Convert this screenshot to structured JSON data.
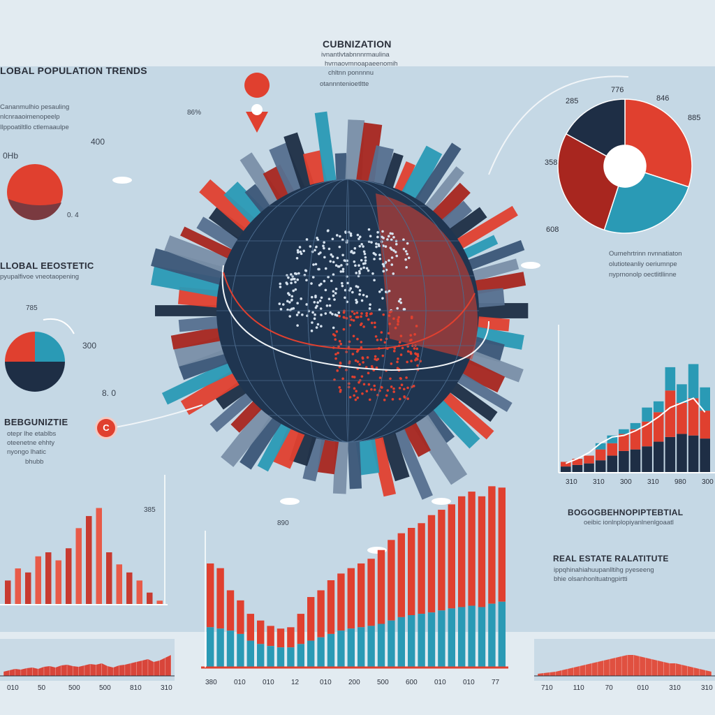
{
  "labels": {
    "top_title": "CUBNIZATION",
    "top_blurb": [
      "ivnantlvtabnnnrmaulina",
      "hvrnaovmnoapaeenomih",
      "chltnn ponnnnu",
      "otannntenioetltte"
    ],
    "left_title": "LOBAL POPULATION TRENDS",
    "left_blurb": [
      "Cananmulhio pesauling",
      "nlcnraaoimenopeelp",
      "Ilppoatiltllo ctlemaaulpe"
    ],
    "left_tag": "0Hb",
    "ecostat_title": "LLOBAL EEOSTETIC",
    "ecostat_blurb": "pyupalfivoe vneotaopening",
    "begun_title": "BEBGUNIZTIE",
    "begun_blurb": [
      "otepr lhe etablbs",
      "oteenetne ehhty",
      "nyongo lhatic",
      "bhubb"
    ],
    "right_blurb": [
      "Oumehrtrinn nvnnatiaton",
      "olutioteanliy oeriumnpe",
      "nyprnonolp oectlitllinne"
    ],
    "bog_title": "BOGOGBEHNOPIPTEBTIAL",
    "bog_blurb": "oeibic ionlnplopiyanlnenlgoaatl",
    "real_title": "REAL ESTATE RALATITUTE",
    "real_blurb": [
      "ippqhinahiahuupanlltihg pyeseeng",
      "bhie olsanhonltuatngpirtti"
    ]
  },
  "annotations": {
    "n400": "400",
    "n04": "0. 4",
    "n86": "86%",
    "n785": "785",
    "n300": "300",
    "n80": "8. 0",
    "n385": "385",
    "n776": "776",
    "n285": "285",
    "n846": "846",
    "n358": "358",
    "n885": "885",
    "n608": "608",
    "n890": "890",
    "marker_c": "C"
  },
  "colors": {
    "red": "#e0402f",
    "dark_red": "#a8261f",
    "teal": "#2a9ab5",
    "navy": "#1e2e45",
    "panel": "#c5d8e5",
    "bg": "#e2ebf1"
  },
  "chart_data": [
    {
      "type": "pie",
      "name": "top-right donut",
      "labels": [
        "",
        "",
        "",
        ""
      ],
      "values": [
        30,
        25,
        28,
        17
      ],
      "colors": [
        "#e0402f",
        "#2a9ab5",
        "#a8261f",
        "#1e2e45"
      ],
      "callouts": [
        "776",
        "285",
        "846",
        "358",
        "885",
        "608"
      ]
    },
    {
      "type": "pie",
      "name": "left half-split pie",
      "labels": [
        "",
        "",
        ""
      ],
      "values": [
        25,
        25,
        50
      ],
      "colors": [
        "#e0402f",
        "#2a9ab5",
        "#1e2e45"
      ],
      "callouts": [
        "785",
        "300"
      ]
    },
    {
      "type": "bar",
      "name": "right stacked bars",
      "categories": [
        "1",
        "2",
        "3",
        "4",
        "5",
        "6",
        "7",
        "8",
        "9",
        "10",
        "11",
        "12",
        "13"
      ],
      "series": [
        {
          "values": [
            8,
            10,
            12,
            16,
            22,
            28,
            30,
            34,
            40,
            46,
            50,
            48,
            44
          ],
          "color": "#1e2e45"
        },
        {
          "values": [
            6,
            8,
            10,
            14,
            16,
            22,
            26,
            32,
            38,
            60,
            40,
            48,
            36
          ],
          "color": "#e0402f"
        },
        {
          "values": [
            0,
            0,
            0,
            8,
            10,
            6,
            8,
            18,
            14,
            30,
            24,
            44,
            30
          ],
          "color": "#2a9ab5"
        }
      ],
      "trend": [
        12,
        18,
        26,
        38,
        46,
        48,
        54,
        62,
        72,
        84,
        90,
        96,
        78
      ],
      "xticks": [
        "310",
        "310",
        "300",
        "310",
        "980",
        "300"
      ],
      "ylim": [
        0,
        180
      ]
    },
    {
      "type": "bar",
      "name": "left small bars",
      "categories": [
        "1",
        "2",
        "3",
        "4",
        "5",
        "6",
        "7",
        "8",
        "9",
        "10",
        "11",
        "12",
        "13",
        "14",
        "15",
        "16"
      ],
      "values": [
        30,
        45,
        40,
        60,
        65,
        55,
        70,
        95,
        110,
        120,
        65,
        50,
        40,
        30,
        15,
        5
      ],
      "ylim": [
        0,
        130
      ]
    },
    {
      "type": "bar",
      "name": "center stacked bars",
      "categories": [
        "1",
        "2",
        "3",
        "4",
        "5",
        "6",
        "7",
        "8",
        "9",
        "10",
        "11",
        "12",
        "13",
        "14",
        "15",
        "16",
        "17",
        "18",
        "19",
        "20",
        "21",
        "22",
        "23",
        "24",
        "25",
        "26",
        "27",
        "28",
        "29",
        "30"
      ],
      "series": [
        {
          "values": [
            60,
            58,
            55,
            50,
            40,
            35,
            32,
            30,
            30,
            35,
            40,
            45,
            50,
            55,
            58,
            60,
            62,
            65,
            70,
            75,
            78,
            80,
            82,
            85,
            88,
            90,
            92,
            90,
            95,
            98
          ],
          "color": "#2a9ab5"
        },
        {
          "values": [
            95,
            90,
            60,
            50,
            40,
            35,
            30,
            28,
            30,
            45,
            65,
            70,
            80,
            85,
            90,
            95,
            100,
            110,
            120,
            125,
            130,
            135,
            145,
            150,
            155,
            165,
            170,
            165,
            175,
            170
          ],
          "color": "#e0402f"
        }
      ],
      "xticks": [
        "380",
        "010",
        "010",
        "12",
        "010",
        "200",
        "500",
        "600",
        "010",
        "010",
        "77"
      ],
      "ylim": [
        0,
        260
      ]
    },
    {
      "type": "area",
      "name": "bottom-left strip",
      "values": [
        6,
        8,
        10,
        9,
        11,
        12,
        10,
        13,
        14,
        12,
        15,
        16,
        14,
        13,
        15,
        17,
        16,
        18,
        14,
        12,
        15,
        16,
        18,
        20,
        22,
        24,
        20,
        22,
        26,
        30
      ],
      "xticks": [
        "010",
        "50",
        "500",
        "500",
        "810",
        "310"
      ],
      "ylim": [
        0,
        40
      ]
    },
    {
      "type": "area",
      "name": "bottom-right strip",
      "values": [
        3,
        4,
        5,
        6,
        8,
        10,
        12,
        14,
        16,
        18,
        20,
        22,
        24,
        26,
        28,
        30,
        30,
        28,
        26,
        24,
        22,
        20,
        18,
        18,
        16,
        14,
        12,
        10,
        8,
        6
      ],
      "xticks": [
        "710",
        "110",
        "70",
        "010",
        "310",
        "310"
      ],
      "ylim": [
        0,
        40
      ]
    }
  ]
}
